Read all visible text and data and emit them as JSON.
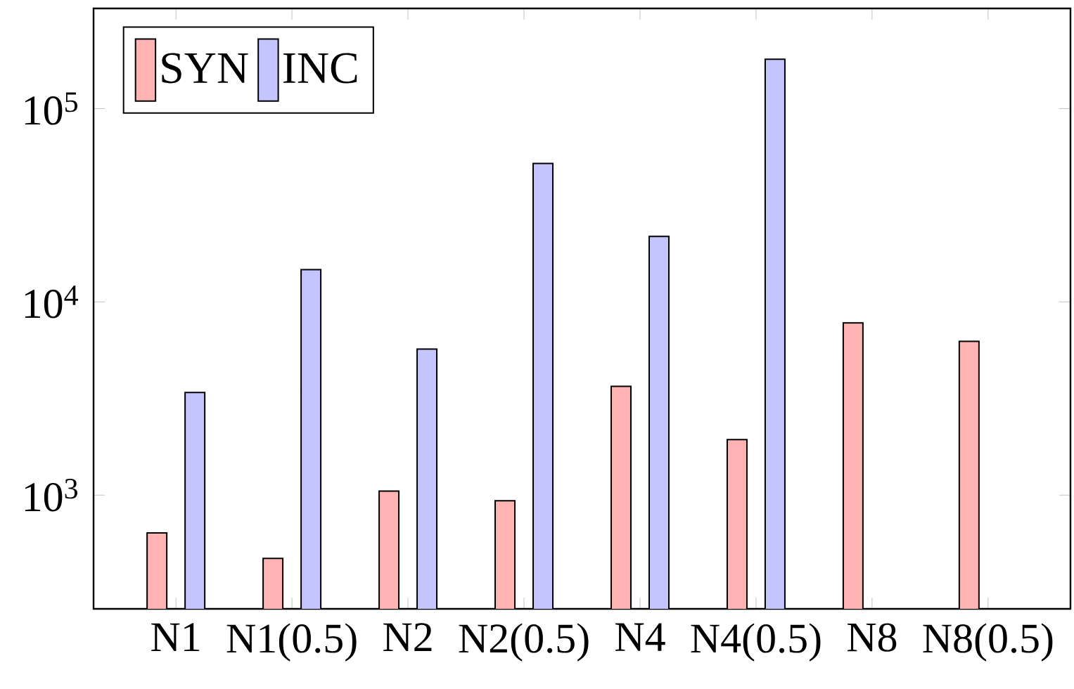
{
  "chart_data": {
    "type": "bar",
    "log": "y",
    "categories": [
      "N1",
      "N1(0.5)",
      "N2",
      "N2(0.5)",
      "N4",
      "N4(0.5)",
      "N8",
      "N8(0.5)"
    ],
    "series": [
      {
        "name": "SYN",
        "color": "#ffb3b3",
        "values": [
          637,
          471,
          1050,
          936,
          3660,
          1940,
          7790,
          6250
        ]
      },
      {
        "name": "INC",
        "color": "#c4c4ff",
        "values": [
          3400,
          14700,
          5700,
          52000,
          21800,
          180000,
          null,
          null
        ]
      }
    ],
    "ylim": [
      258,
      330000
    ],
    "yticks": [
      {
        "value": 1000,
        "label": "10$^{3}$"
      },
      {
        "value": 10000,
        "label": "10$^{4}$"
      },
      {
        "value": 100000,
        "label": "10$^{5}$"
      }
    ],
    "legend": "top left",
    "grid": false
  }
}
